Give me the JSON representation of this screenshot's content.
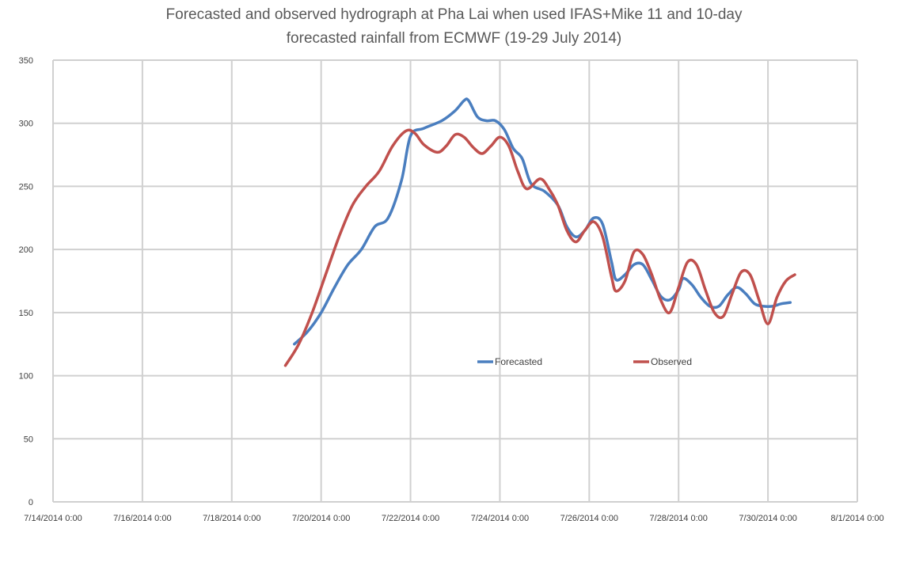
{
  "chart_data": {
    "type": "line",
    "title_line1": "Forecasted and observed hydrograph at Pha Lai when used IFAS+Mike 11 and 10-day",
    "title_line2": "forecasted rainfall from ECMWF (19-29 July 2014)",
    "xlabel": "",
    "ylabel": "",
    "xlim": [
      0,
      18
    ],
    "ylim": [
      0,
      350
    ],
    "x_ticks": [
      {
        "pos": 0,
        "label": "7/14/2014 0:00"
      },
      {
        "pos": 2,
        "label": "7/16/2014 0:00"
      },
      {
        "pos": 4,
        "label": "7/18/2014 0:00"
      },
      {
        "pos": 6,
        "label": "7/20/2014 0:00"
      },
      {
        "pos": 8,
        "label": "7/22/2014 0:00"
      },
      {
        "pos": 10,
        "label": "7/24/2014 0:00"
      },
      {
        "pos": 12,
        "label": "7/26/2014 0:00"
      },
      {
        "pos": 14,
        "label": "7/28/2014 0:00"
      },
      {
        "pos": 16,
        "label": "7/30/2014 0:00"
      },
      {
        "pos": 18,
        "label": "8/1/2014 0:00"
      }
    ],
    "y_ticks": [
      0,
      50,
      100,
      150,
      200,
      250,
      300,
      350
    ],
    "grid": true,
    "legend_position": "center-right",
    "series": [
      {
        "name": "Forecasted",
        "color": "#4a7ebf",
        "points": [
          [
            5.4,
            125
          ],
          [
            5.7,
            135
          ],
          [
            6.0,
            150
          ],
          [
            6.3,
            170
          ],
          [
            6.6,
            188
          ],
          [
            6.9,
            200
          ],
          [
            7.2,
            218
          ],
          [
            7.5,
            225
          ],
          [
            7.8,
            255
          ],
          [
            8.0,
            290
          ],
          [
            8.3,
            296
          ],
          [
            8.7,
            302
          ],
          [
            9.0,
            310
          ],
          [
            9.2,
            318
          ],
          [
            9.3,
            318
          ],
          [
            9.5,
            305
          ],
          [
            9.7,
            302
          ],
          [
            9.9,
            302
          ],
          [
            10.1,
            295
          ],
          [
            10.3,
            280
          ],
          [
            10.5,
            272
          ],
          [
            10.7,
            252
          ],
          [
            11.0,
            246
          ],
          [
            11.3,
            235
          ],
          [
            11.5,
            218
          ],
          [
            11.7,
            210
          ],
          [
            11.9,
            215
          ],
          [
            12.1,
            225
          ],
          [
            12.3,
            220
          ],
          [
            12.5,
            190
          ],
          [
            12.6,
            176
          ],
          [
            12.8,
            180
          ],
          [
            13.0,
            188
          ],
          [
            13.2,
            188
          ],
          [
            13.4,
            176
          ],
          [
            13.6,
            163
          ],
          [
            13.8,
            160
          ],
          [
            14.0,
            168
          ],
          [
            14.1,
            177
          ],
          [
            14.3,
            172
          ],
          [
            14.5,
            162
          ],
          [
            14.7,
            155
          ],
          [
            14.9,
            155
          ],
          [
            15.1,
            164
          ],
          [
            15.3,
            170
          ],
          [
            15.5,
            165
          ],
          [
            15.7,
            157
          ],
          [
            15.9,
            155
          ],
          [
            16.1,
            155
          ],
          [
            16.3,
            157
          ],
          [
            16.5,
            158
          ]
        ]
      },
      {
        "name": "Observed",
        "color": "#c0504d",
        "points": [
          [
            5.2,
            108
          ],
          [
            5.5,
            125
          ],
          [
            5.8,
            150
          ],
          [
            6.1,
            180
          ],
          [
            6.4,
            210
          ],
          [
            6.7,
            235
          ],
          [
            7.0,
            250
          ],
          [
            7.3,
            262
          ],
          [
            7.6,
            282
          ],
          [
            7.9,
            294
          ],
          [
            8.1,
            292
          ],
          [
            8.3,
            283
          ],
          [
            8.6,
            277
          ],
          [
            8.8,
            282
          ],
          [
            9.0,
            291
          ],
          [
            9.2,
            289
          ],
          [
            9.4,
            281
          ],
          [
            9.6,
            276
          ],
          [
            9.8,
            282
          ],
          [
            10.0,
            289
          ],
          [
            10.2,
            282
          ],
          [
            10.4,
            262
          ],
          [
            10.6,
            248
          ],
          [
            10.9,
            256
          ],
          [
            11.1,
            248
          ],
          [
            11.3,
            235
          ],
          [
            11.5,
            215
          ],
          [
            11.7,
            206
          ],
          [
            11.9,
            215
          ],
          [
            12.1,
            222
          ],
          [
            12.3,
            210
          ],
          [
            12.5,
            178
          ],
          [
            12.6,
            167
          ],
          [
            12.8,
            175
          ],
          [
            13.0,
            198
          ],
          [
            13.2,
            196
          ],
          [
            13.4,
            180
          ],
          [
            13.6,
            160
          ],
          [
            13.8,
            150
          ],
          [
            14.0,
            170
          ],
          [
            14.2,
            190
          ],
          [
            14.4,
            188
          ],
          [
            14.6,
            168
          ],
          [
            14.8,
            150
          ],
          [
            15.0,
            147
          ],
          [
            15.2,
            165
          ],
          [
            15.4,
            182
          ],
          [
            15.6,
            180
          ],
          [
            15.8,
            160
          ],
          [
            16.0,
            141
          ],
          [
            16.2,
            162
          ],
          [
            16.4,
            175
          ],
          [
            16.6,
            180
          ]
        ]
      }
    ]
  }
}
